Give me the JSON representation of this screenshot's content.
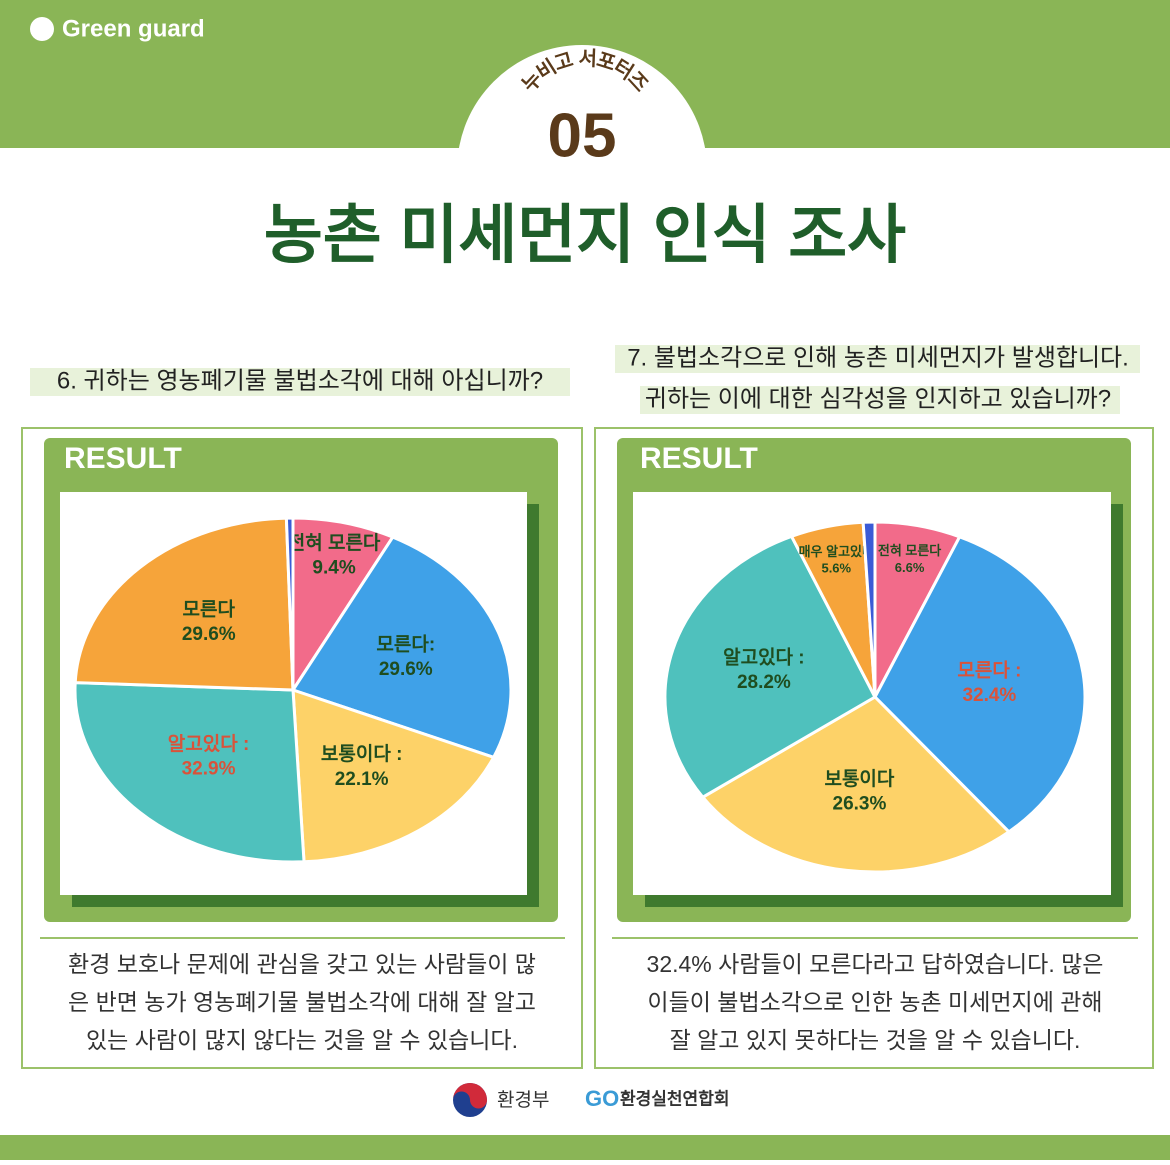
{
  "brand": "Green guard",
  "badge": {
    "top": "누비고 서포터즈",
    "number": "05"
  },
  "title": "농촌 미세먼지 인식 조사",
  "panels": [
    {
      "question": [
        "6. 귀하는 영농폐기물 불법소각에 대해 아십니까?"
      ],
      "result": "RESULT",
      "caption": [
        "환경 보호나 문제에 관심을 갖고 있는 사람들이 많",
        "은 반면 농가 영농폐기물 불법소각에 대해 잘 알고",
        "있는 사람이 많지 않다는 것을 알 수 있습니다."
      ]
    },
    {
      "question": [
        "7. 불법소각으로 인해 농촌 미세먼지가 발생합니다.",
        "귀하는 이에 대한 심각성을 인지하고 있습니까?"
      ],
      "result": "RESULT",
      "caption": [
        "32.4% 사람들이 모른다라고 답하였습니다.  많은",
        "이들이 불법소각으로 인한 농촌 미세먼지에 관해",
        "잘 알고 있지 못하다는 것을 알 수 있습니다."
      ]
    }
  ],
  "footer": [
    "환경부",
    "환경실천연합회"
  ],
  "chart_data": [
    {
      "type": "pie",
      "categories": [
        "전혀 모른다",
        "모른다:",
        "보통이다 :",
        "알고있다 :",
        "모른다",
        null
      ],
      "values": [
        9.4,
        29.6,
        22.1,
        32.9,
        29.6,
        0.6
      ],
      "value_labels": [
        "9.4%",
        "29.6%",
        "22.1%",
        "32.9%",
        "29.6%",
        null
      ],
      "colors": [
        "#f26b8a",
        "#3fa1e8",
        "#fdd268",
        "#4fc1bd",
        "#f6a43a",
        "#3b5bd6"
      ],
      "label_colors": [
        "#1f4d1f",
        "#1f4d1f",
        "#1f4d1f",
        "#d9533a",
        "#1f4d1f",
        null
      ]
    },
    {
      "type": "pie",
      "categories": [
        "전혀 모른다",
        "모른다 :",
        "보통이다",
        "알고있다 :",
        "매우 알고있다",
        null
      ],
      "values": [
        6.6,
        32.4,
        26.3,
        28.2,
        5.6,
        0.9
      ],
      "value_labels": [
        "6.6%",
        "32.4%",
        "26.3%",
        "28.2%",
        "5.6%",
        null
      ],
      "colors": [
        "#f26b8a",
        "#3fa1e8",
        "#fdd268",
        "#4fc1bd",
        "#f6a43a",
        "#3b5bd6"
      ],
      "label_colors": [
        "#1f4d1f",
        "#d9533a",
        "#1f4d1f",
        "#1f4d1f",
        "#1f4d1f",
        null
      ]
    }
  ]
}
